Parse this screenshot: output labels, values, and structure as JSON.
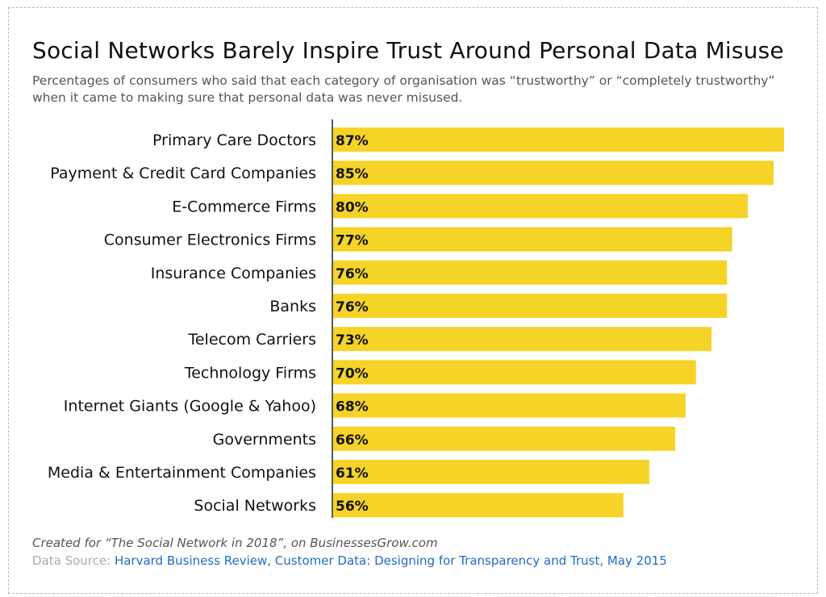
{
  "title": "Social Networks Barely Inspire Trust Around Personal Data Misuse",
  "subtitle": "Percentages of consumers who said that each category of organisation was “trustworthy” or “completely trustworthy” when it came to making sure that personal data was never misused.",
  "footer": {
    "created_for": "Created for “The Social Network in 2018”, on BusinessesGrow.com",
    "source_label": "Data Source:",
    "source_text": "Harvard Business Review, Customer Data: Designing for Transparency and Trust, May 2015"
  },
  "colors": {
    "bar": "#f5d327",
    "text": "#111111",
    "link": "#1d6cc2"
  },
  "chart_data": {
    "type": "bar",
    "orientation": "horizontal",
    "categories": [
      "Primary Care Doctors",
      "Payment & Credit Card Companies",
      "E-Commerce Firms",
      "Consumer Electronics Firms",
      "Insurance Companies",
      "Banks",
      "Telecom Carriers",
      "Technology Firms",
      "Internet Giants (Google & Yahoo)",
      "Governments",
      "Media & Entertainment Companies",
      "Social Networks"
    ],
    "values": [
      87,
      85,
      80,
      77,
      76,
      76,
      73,
      70,
      68,
      66,
      61,
      56
    ],
    "data_labels": [
      "87%",
      "85%",
      "80%",
      "77%",
      "76%",
      "76%",
      "73%",
      "70%",
      "68%",
      "66%",
      "61%",
      "56%"
    ],
    "unit": "%",
    "xlim": [
      0,
      87
    ],
    "grid": false,
    "legend": "none"
  }
}
